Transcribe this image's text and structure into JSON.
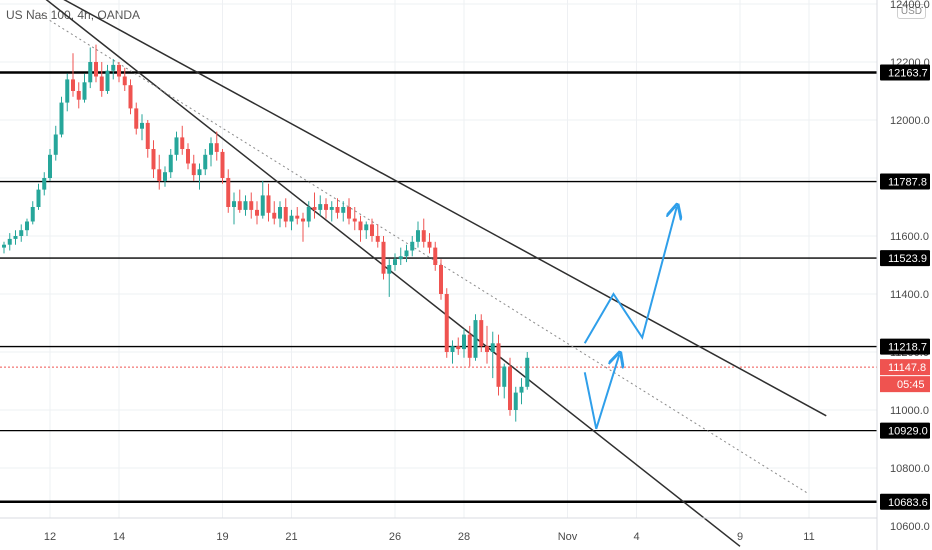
{
  "header": {
    "symbol_label": "US Nas 100, 4h, OANDA"
  },
  "currency_badge": "USD",
  "colors": {
    "up": "#26a69a",
    "down": "#ef5350",
    "grid": "#eef0f3",
    "level": "#000000",
    "channel": "#2f2f2f",
    "arrow": "#2f9fea",
    "price_line": "#ef5350"
  },
  "chart_data": {
    "type": "candlestick",
    "title": "",
    "xlabel": "",
    "ylabel": "",
    "ylim": [
      10600,
      12420
    ],
    "y_ticks": [
      "12400.0",
      "12200.0",
      "12000.0",
      "11800.0",
      "11600.0",
      "11400.0",
      "11200.0",
      "11000.0",
      "10800.0",
      "10600.0"
    ],
    "x_ticks": [
      "12",
      "14",
      "19",
      "21",
      "26",
      "28",
      "Nov",
      "4",
      "9",
      "11"
    ],
    "x_tick_bar_index": [
      8,
      20,
      38,
      50,
      68,
      80,
      98,
      110,
      128,
      140
    ],
    "levels": [
      {
        "label": "12163.7",
        "value": 12163.7,
        "style": "thick"
      },
      {
        "label": "11787.8",
        "value": 11787.8,
        "style": "normal"
      },
      {
        "label": "11523.9",
        "value": 11523.9,
        "style": "normal"
      },
      {
        "label": "11218.7",
        "value": 11218.7,
        "style": "normal"
      },
      {
        "label": "10929.0",
        "value": 10929.0,
        "style": "normal"
      },
      {
        "label": "10683.6",
        "value": 10683.6,
        "style": "thick"
      }
    ],
    "last_price": {
      "label": "11147.8",
      "value": 11147.8,
      "countdown": "05:45"
    },
    "channel": {
      "upper": [
        [
          10,
          12420
        ],
        [
          143,
          10980
        ]
      ],
      "lower": [
        [
          0,
          12530
        ],
        [
          128,
          10530
        ]
      ],
      "middle": [
        [
          5,
          12380
        ],
        [
          140,
          10710
        ]
      ]
    },
    "projection_arrows": [
      [
        [
          101,
          11230
        ],
        [
          106,
          11400
        ],
        [
          111,
          11250
        ],
        [
          117,
          11700
        ]
      ],
      [
        [
          101,
          11130
        ],
        [
          103,
          10935
        ],
        [
          107,
          11190
        ]
      ]
    ],
    "candles": [
      [
        11560,
        11580,
        11540,
        11570
      ],
      [
        11570,
        11610,
        11550,
        11590
      ],
      [
        11590,
        11620,
        11570,
        11600
      ],
      [
        11600,
        11640,
        11580,
        11620
      ],
      [
        11620,
        11660,
        11600,
        11650
      ],
      [
        11650,
        11720,
        11640,
        11700
      ],
      [
        11700,
        11780,
        11690,
        11760
      ],
      [
        11760,
        11820,
        11740,
        11800
      ],
      [
        11800,
        11900,
        11790,
        11880
      ],
      [
        11880,
        11980,
        11860,
        11950
      ],
      [
        11950,
        12080,
        11940,
        12060
      ],
      [
        12060,
        12160,
        12030,
        12140
      ],
      [
        12140,
        12230,
        12080,
        12100
      ],
      [
        12100,
        12130,
        12040,
        12070
      ],
      [
        12070,
        12160,
        12060,
        12130
      ],
      [
        12130,
        12250,
        12110,
        12200
      ],
      [
        12200,
        12260,
        12130,
        12150
      ],
      [
        12150,
        12200,
        12080,
        12100
      ],
      [
        12100,
        12190,
        12090,
        12170
      ],
      [
        12170,
        12210,
        12140,
        12190
      ],
      [
        12190,
        12200,
        12130,
        12150
      ],
      [
        12150,
        12180,
        12100,
        12120
      ],
      [
        12120,
        12140,
        12020,
        12040
      ],
      [
        12040,
        12060,
        11950,
        11970
      ],
      [
        11970,
        12020,
        11930,
        11990
      ],
      [
        11990,
        12000,
        11870,
        11900
      ],
      [
        11900,
        11930,
        11800,
        11830
      ],
      [
        11830,
        11880,
        11760,
        11790
      ],
      [
        11790,
        11840,
        11770,
        11820
      ],
      [
        11820,
        11900,
        11800,
        11880
      ],
      [
        11880,
        11960,
        11860,
        11940
      ],
      [
        11940,
        11980,
        11880,
        11900
      ],
      [
        11900,
        11920,
        11830,
        11850
      ],
      [
        11850,
        11880,
        11790,
        11810
      ],
      [
        11810,
        11850,
        11760,
        11830
      ],
      [
        11830,
        11900,
        11810,
        11880
      ],
      [
        11880,
        11940,
        11840,
        11920
      ],
      [
        11920,
        11960,
        11860,
        11890
      ],
      [
        11890,
        11900,
        11780,
        11800
      ],
      [
        11800,
        11830,
        11680,
        11700
      ],
      [
        11700,
        11750,
        11640,
        11720
      ],
      [
        11720,
        11760,
        11680,
        11690
      ],
      [
        11690,
        11740,
        11670,
        11720
      ],
      [
        11720,
        11750,
        11660,
        11690
      ],
      [
        11690,
        11720,
        11640,
        11670
      ],
      [
        11670,
        11790,
        11660,
        11740
      ],
      [
        11740,
        11780,
        11650,
        11680
      ],
      [
        11680,
        11720,
        11640,
        11660
      ],
      [
        11660,
        11720,
        11630,
        11700
      ],
      [
        11700,
        11730,
        11630,
        11650
      ],
      [
        11650,
        11690,
        11620,
        11670
      ],
      [
        11670,
        11700,
        11640,
        11660
      ],
      [
        11660,
        11680,
        11580,
        11650
      ],
      [
        11650,
        11720,
        11630,
        11700
      ],
      [
        11700,
        11750,
        11660,
        11690
      ],
      [
        11690,
        11740,
        11670,
        11710
      ],
      [
        11710,
        11730,
        11660,
        11690
      ],
      [
        11690,
        11720,
        11650,
        11700
      ],
      [
        11700,
        11730,
        11660,
        11680
      ],
      [
        11680,
        11720,
        11650,
        11700
      ],
      [
        11700,
        11730,
        11640,
        11660
      ],
      [
        11660,
        11700,
        11620,
        11650
      ],
      [
        11650,
        11670,
        11580,
        11620
      ],
      [
        11620,
        11650,
        11590,
        11640
      ],
      [
        11640,
        11660,
        11580,
        11600
      ],
      [
        11600,
        11640,
        11560,
        11580
      ],
      [
        11580,
        11600,
        11450,
        11470
      ],
      [
        11470,
        11520,
        11390,
        11500
      ],
      [
        11500,
        11540,
        11480,
        11520
      ],
      [
        11520,
        11560,
        11500,
        11530
      ],
      [
        11530,
        11570,
        11510,
        11550
      ],
      [
        11550,
        11600,
        11530,
        11580
      ],
      [
        11580,
        11650,
        11560,
        11620
      ],
      [
        11620,
        11660,
        11560,
        11580
      ],
      [
        11580,
        11610,
        11540,
        11560
      ],
      [
        11560,
        11580,
        11480,
        11500
      ],
      [
        11500,
        11520,
        11380,
        11400
      ],
      [
        11400,
        11420,
        11180,
        11200
      ],
      [
        11200,
        11240,
        11160,
        11220
      ],
      [
        11220,
        11250,
        11190,
        11210
      ],
      [
        11210,
        11280,
        11180,
        11260
      ],
      [
        11260,
        11290,
        11150,
        11180
      ],
      [
        11180,
        11330,
        11170,
        11310
      ],
      [
        11310,
        11330,
        11200,
        11220
      ],
      [
        11220,
        11290,
        11160,
        11200
      ],
      [
        11200,
        11270,
        11110,
        11230
      ],
      [
        11230,
        11260,
        11050,
        11080
      ],
      [
        11080,
        11160,
        11040,
        11150
      ],
      [
        11150,
        11180,
        10980,
        11000
      ],
      [
        11000,
        11080,
        10960,
        11060
      ],
      [
        11060,
        11110,
        11020,
        11080
      ],
      [
        11080,
        11200,
        11070,
        11180
      ]
    ]
  }
}
